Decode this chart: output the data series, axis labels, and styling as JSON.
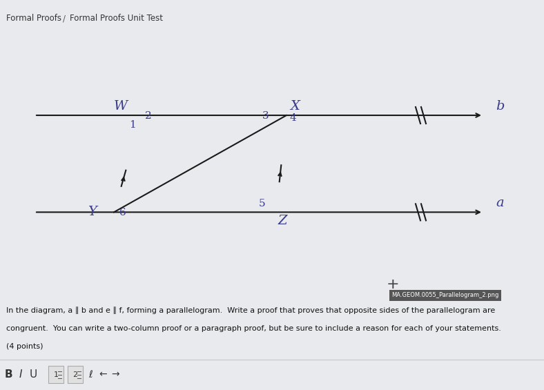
{
  "bg_color": "#e8eaed",
  "diagram_bg": "#e8eaed",
  "title_bar_color": "#4a90c4",
  "title_text": "Formal Proofs",
  "title_sep": "/",
  "title_unit": "Formal Proofs Unit Test",
  "label_color": "#3a3a8c",
  "text_color": "#111111",
  "body_text_1": "In the diagram, a ∥ b and e ∥ f, forming a parallelogram.  Write a proof that proves that opposite sides of the parallelogram are",
  "body_text_2": "congruent.  You can write a two-column proof or a paragraph proof, but be sure to include a reason for each of your statements.",
  "body_text_3": "(4 points)",
  "watermark": "MA.GEOM.0055_Parallelogram_2.png",
  "line_color": "#1a1a1a",
  "toolbar_bg": "#f5f5f5"
}
